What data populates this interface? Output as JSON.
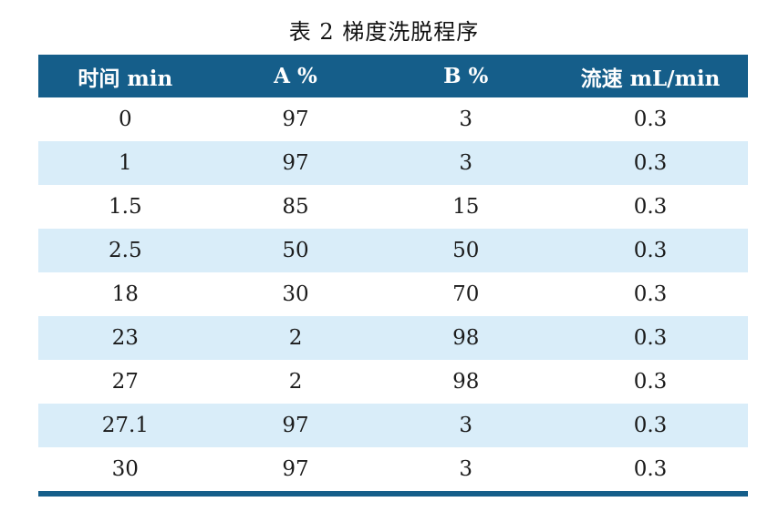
{
  "title": "表 2 梯度洗脱程序",
  "table": {
    "headers": [
      "时间 min",
      "A %",
      "B %",
      "流速 mL/min"
    ],
    "rows": [
      [
        "0",
        "97",
        "3",
        "0.3"
      ],
      [
        "1",
        "97",
        "3",
        "0.3"
      ],
      [
        "1.5",
        "85",
        "15",
        "0.3"
      ],
      [
        "2.5",
        "50",
        "50",
        "0.3"
      ],
      [
        "18",
        "30",
        "70",
        "0.3"
      ],
      [
        "23",
        "2",
        "98",
        "0.3"
      ],
      [
        "27",
        "2",
        "98",
        "0.3"
      ],
      [
        "27.1",
        "97",
        "3",
        "0.3"
      ],
      [
        "30",
        "97",
        "3",
        "0.3"
      ]
    ]
  },
  "colors": {
    "header_background": "#155e8a",
    "header_text": "#ffffff",
    "stripe_background": "#d9edf9",
    "bottom_border": "#155e8a",
    "body_text": "#1b1b1b",
    "page_background": "#ffffff"
  }
}
